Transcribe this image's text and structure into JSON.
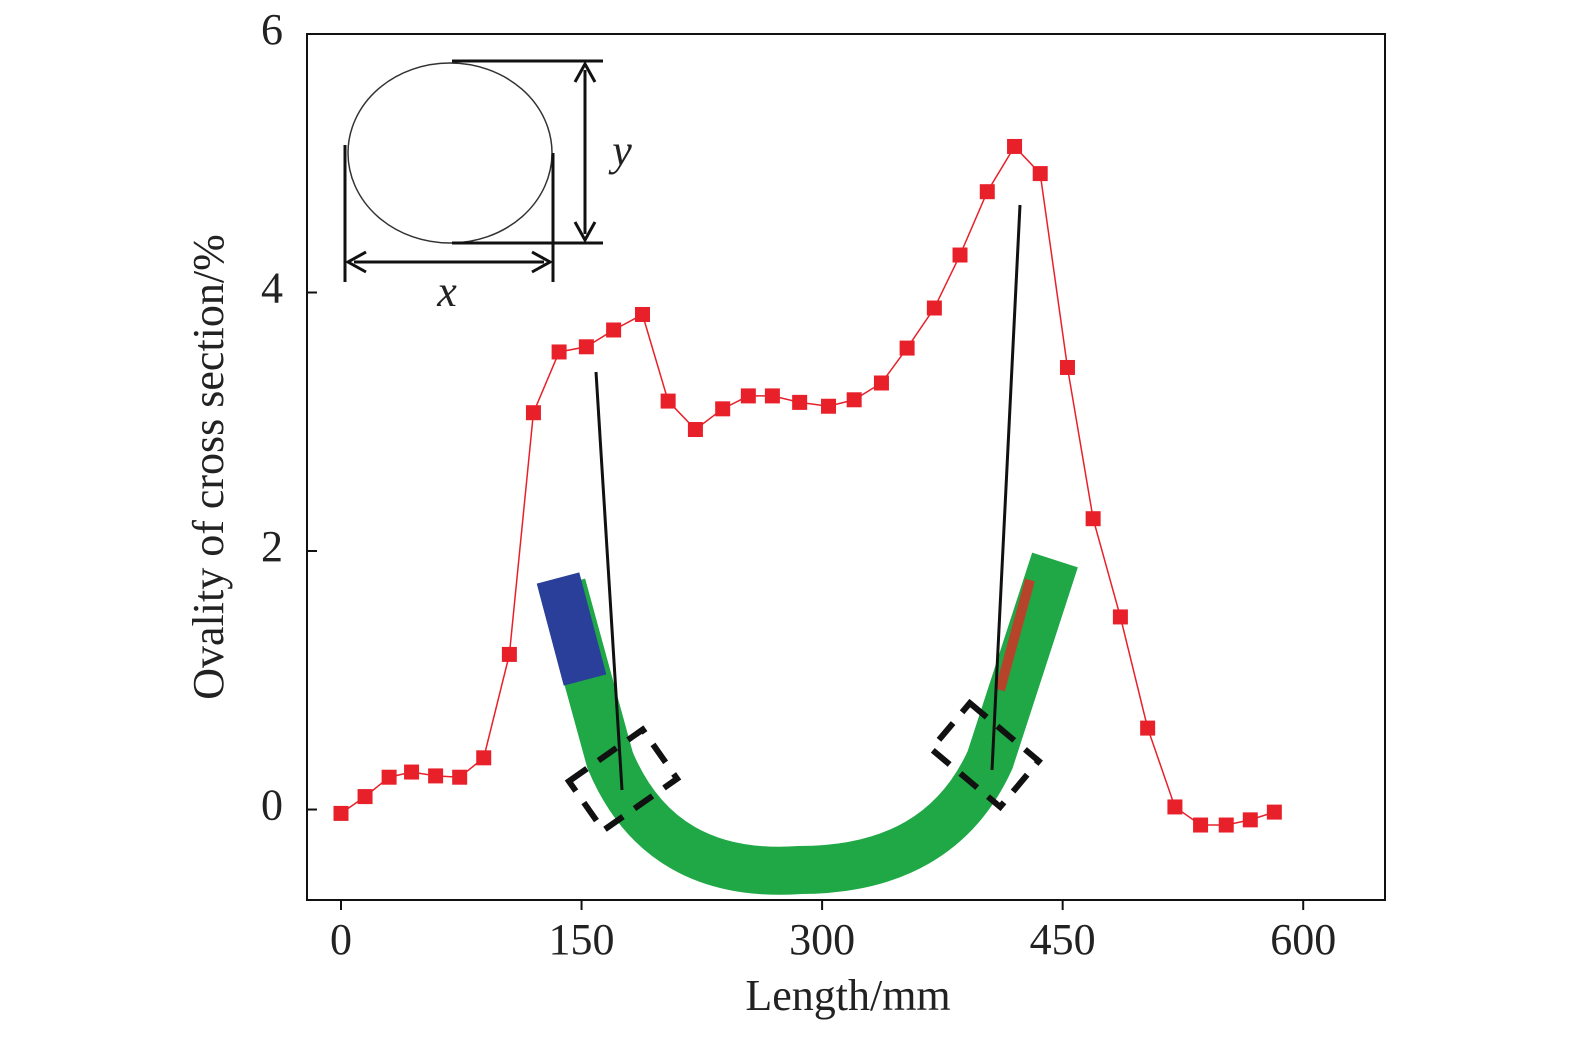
{
  "chart_data": {
    "type": "line",
    "xlabel": "Length/mm",
    "ylabel": "Ovality of cross section/%",
    "annotations": [
      "x",
      "y"
    ],
    "x": [
      0,
      15,
      30,
      44,
      59,
      74,
      89,
      105,
      120,
      136,
      153,
      170,
      188,
      204,
      221,
      238,
      254,
      269,
      286,
      304,
      320,
      337,
      353,
      370,
      386,
      403,
      420,
      436,
      453,
      469,
      486,
      503,
      520,
      536,
      552,
      567,
      582
    ],
    "values": [
      -0.03,
      0.1,
      0.25,
      0.29,
      0.26,
      0.25,
      0.4,
      1.2,
      3.07,
      3.54,
      3.58,
      3.71,
      3.83,
      3.16,
      2.94,
      3.1,
      3.2,
      3.2,
      3.15,
      3.12,
      3.17,
      3.3,
      3.57,
      3.88,
      4.29,
      4.78,
      5.13,
      4.92,
      3.42,
      2.25,
      1.49,
      0.63,
      0.02,
      -0.12,
      -0.12,
      -0.08,
      -0.02
    ],
    "color": "#e8202a",
    "xlim": [
      -21.2,
      651
    ],
    "ylim": [
      -0.7,
      6
    ],
    "xticks": [
      0,
      150,
      300,
      450,
      600
    ],
    "yticks": [
      0,
      2,
      4,
      6
    ],
    "grid": false
  }
}
